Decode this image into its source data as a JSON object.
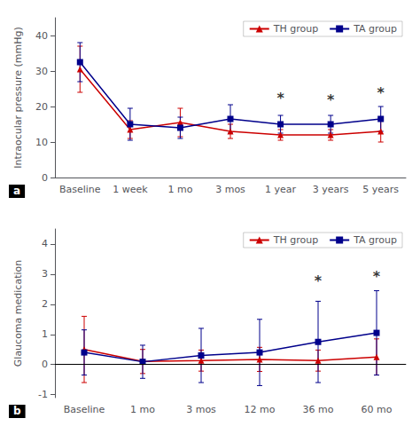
{
  "chart_data": [
    {
      "type": "line",
      "panel_label": "a",
      "ylabel": "Intraocular pressure (mmHg)",
      "categories": [
        "Baseline",
        "1 week",
        "1 mo",
        "3 mos",
        "1 year",
        "3 years",
        "5 years"
      ],
      "series": [
        {
          "name": "TH group",
          "color": "#cc0000",
          "marker": "triangle",
          "values": [
            30.5,
            13.5,
            15.5,
            13.0,
            12.0,
            12.0,
            13.0
          ],
          "error_low": [
            6.5,
            2.5,
            4.0,
            2.0,
            1.5,
            1.5,
            3.0
          ],
          "error_high": [
            6.5,
            2.5,
            4.0,
            2.0,
            1.5,
            1.5,
            3.0
          ]
        },
        {
          "name": "TA group",
          "color": "#00008b",
          "marker": "square",
          "values": [
            32.5,
            15.0,
            14.0,
            16.5,
            15.0,
            15.0,
            16.5
          ],
          "error_low": [
            5.5,
            4.5,
            3.0,
            4.0,
            2.5,
            2.5,
            3.5
          ],
          "error_high": [
            5.5,
            4.5,
            3.0,
            4.0,
            2.5,
            2.5,
            3.5
          ]
        }
      ],
      "annotations": [
        {
          "text": "*",
          "x": "1 year",
          "y": 20.5
        },
        {
          "text": "*",
          "x": "3 years",
          "y": 20.0
        },
        {
          "text": "*",
          "x": "5 years",
          "y": 22.0
        }
      ],
      "ylim": [
        0,
        45
      ],
      "yticks": [
        0,
        10,
        20,
        30,
        40
      ],
      "grid": false,
      "legend": "upper right"
    },
    {
      "type": "line",
      "panel_label": "b",
      "ylabel": "Glaucoma medication",
      "categories": [
        "Baseline",
        "1 mo",
        "3 mos",
        "12 mo",
        "36 mo",
        "60 mo"
      ],
      "series": [
        {
          "name": "TH group",
          "color": "#cc0000",
          "marker": "triangle",
          "values": [
            0.5,
            0.1,
            0.13,
            0.17,
            0.13,
            0.25
          ],
          "error_low": [
            1.1,
            0.4,
            0.35,
            0.4,
            0.35,
            0.6
          ],
          "error_high": [
            1.1,
            0.4,
            0.35,
            0.4,
            0.35,
            0.6
          ]
        },
        {
          "name": "TA group",
          "color": "#00008b",
          "marker": "square",
          "values": [
            0.4,
            0.09,
            0.3,
            0.4,
            0.75,
            1.05
          ],
          "error_low": [
            0.75,
            0.55,
            0.9,
            1.1,
            1.35,
            1.4
          ],
          "error_high": [
            0.75,
            0.55,
            0.9,
            1.1,
            1.35,
            1.4
          ]
        }
      ],
      "annotations": [
        {
          "text": "*",
          "x": "36 mo",
          "y": 2.55
        },
        {
          "text": "*",
          "x": "60 mo",
          "y": 2.7
        }
      ],
      "hlines": [
        0
      ],
      "ylim": [
        -1.1,
        4.5
      ],
      "yticks": [
        -1,
        0,
        1,
        2,
        3,
        4
      ],
      "grid": false,
      "legend": "upper right"
    }
  ]
}
